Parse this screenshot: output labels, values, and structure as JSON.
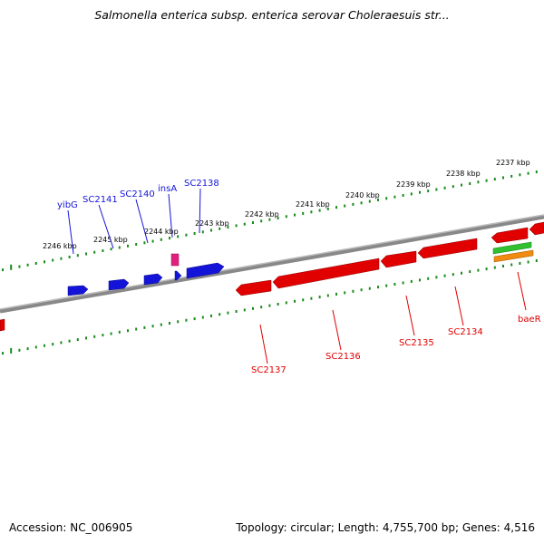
{
  "title": "Salmonella enterica subsp. enterica serovar Choleraesuis str...",
  "footer": {
    "accession": "Accession: NC_006905",
    "topology": "Topology: circular; Length: 4,755,700 bp; Genes: 4,516"
  },
  "colors": {
    "forward_gene": "#1010e0",
    "reverse_gene": "#e00000",
    "rna_gene": "#e0207a",
    "tick": "#1a8a1a",
    "backbone": "#777777",
    "feature_green": "#30c030",
    "feature_orange": "#f08a10"
  },
  "kbp_ticks": [
    "2237 kbp",
    "2238 kbp",
    "2239 kbp",
    "2240 kbp",
    "2241 kbp",
    "2242 kbp",
    "2243 kbp",
    "2244 kbp",
    "2245 kbp",
    "2246 kbp"
  ],
  "forward_labels": [
    "yibG",
    "SC2141",
    "SC2140",
    "insA",
    "SC2138"
  ],
  "reverse_labels": [
    "SC2137",
    "SC2136",
    "SC2135",
    "SC2134",
    "baeR"
  ]
}
